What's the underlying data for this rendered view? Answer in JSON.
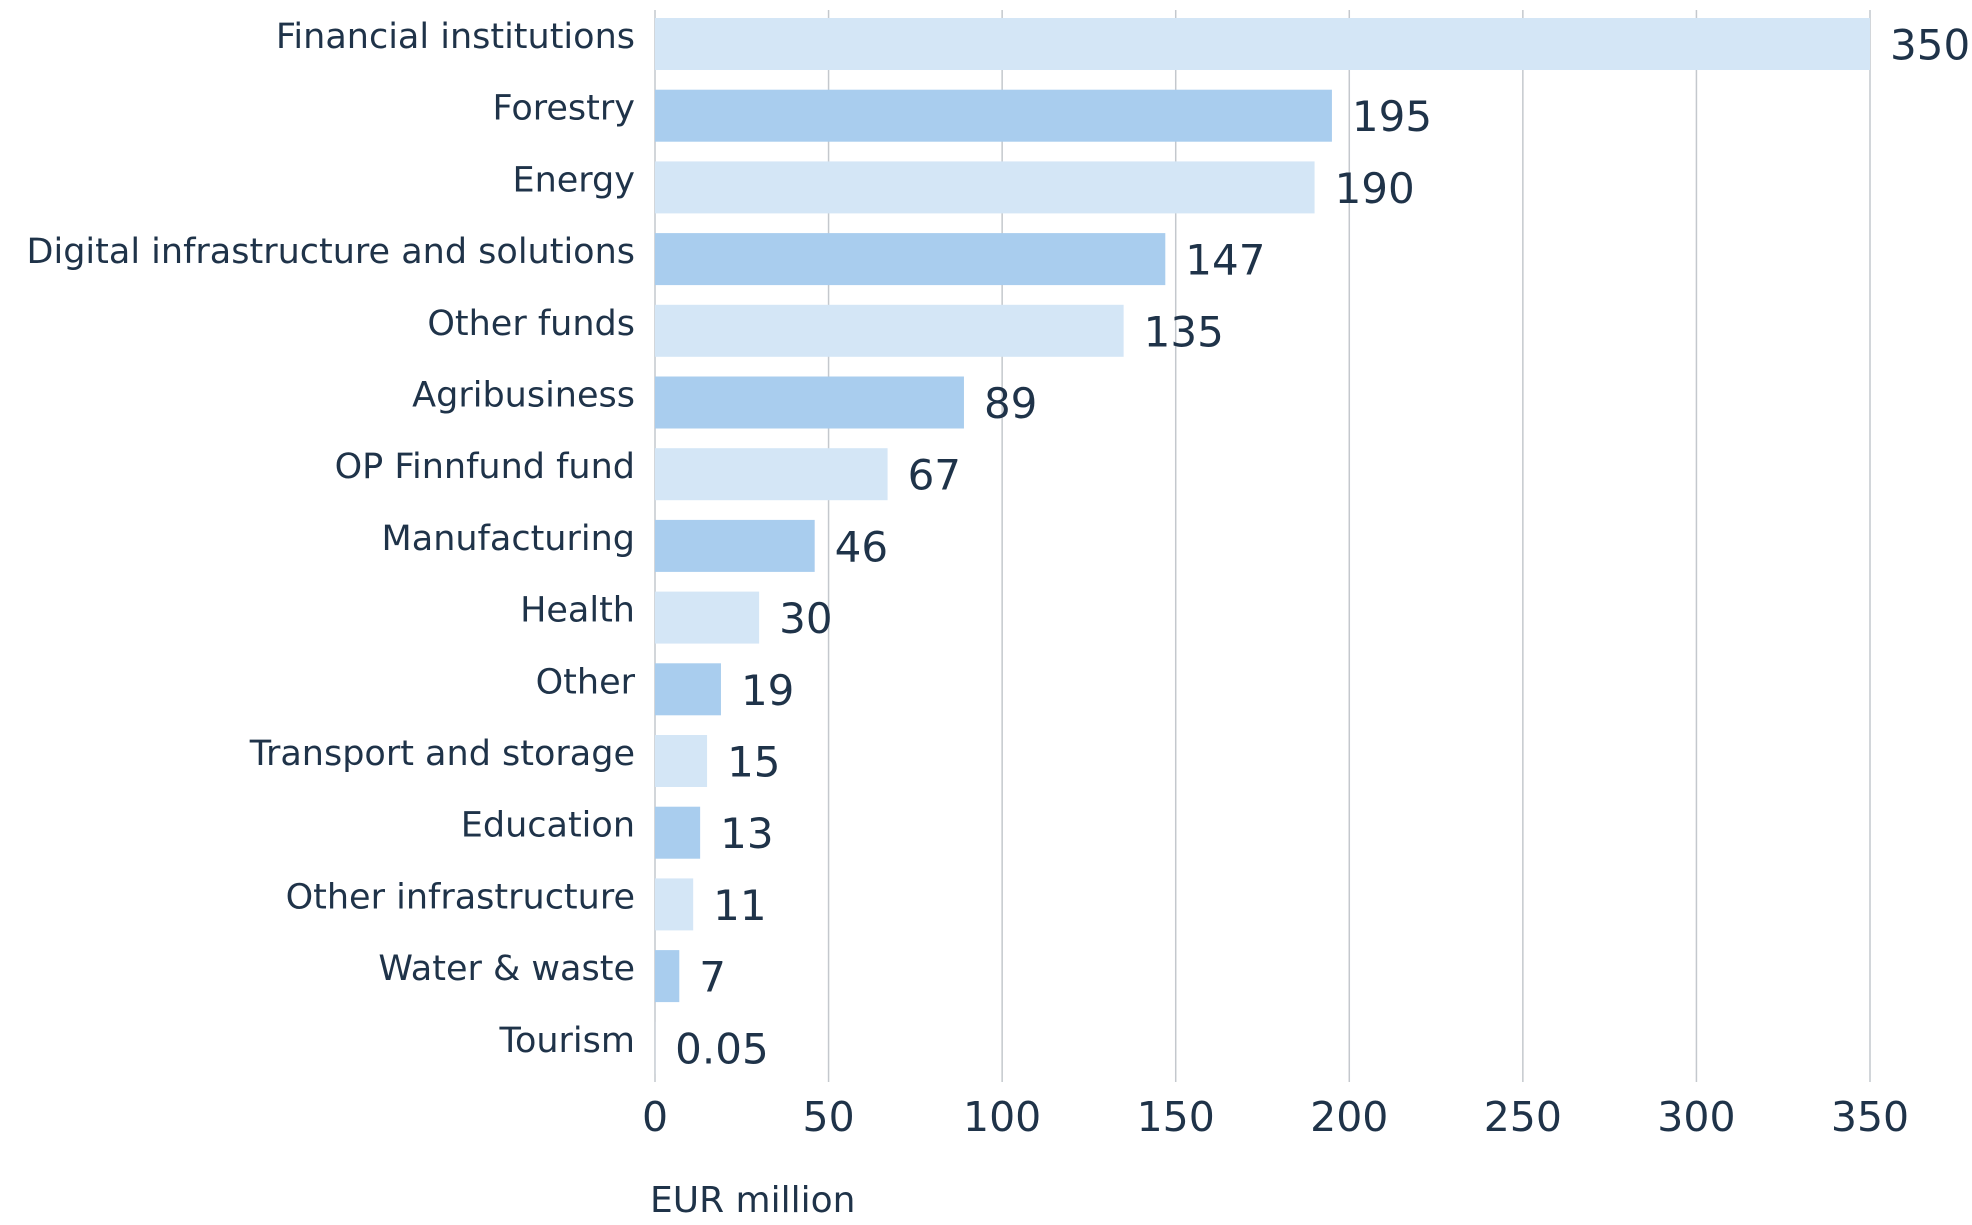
{
  "chart_data": {
    "type": "hbar",
    "categories": [
      "Financial institutions",
      "Forestry",
      "Energy",
      "Digital infrastructure and solutions",
      "Other funds",
      "Agribusiness",
      "OP Finnfund fund",
      "Manufacturing",
      "Health",
      "Other",
      "Transport and storage",
      "Education",
      "Other infrastructure",
      "Water & waste",
      "Tourism"
    ],
    "values": [
      350,
      195,
      190,
      147,
      135,
      89,
      67,
      46,
      30,
      19,
      15,
      13,
      11,
      7,
      0.05
    ],
    "colors": [
      "#d4e6f6",
      "#a9cdee"
    ],
    "xlim": [
      0,
      350
    ],
    "xticks": [
      0,
      50,
      100,
      150,
      200,
      250,
      300,
      350
    ],
    "x_label": "EUR million",
    "grid": true
  }
}
